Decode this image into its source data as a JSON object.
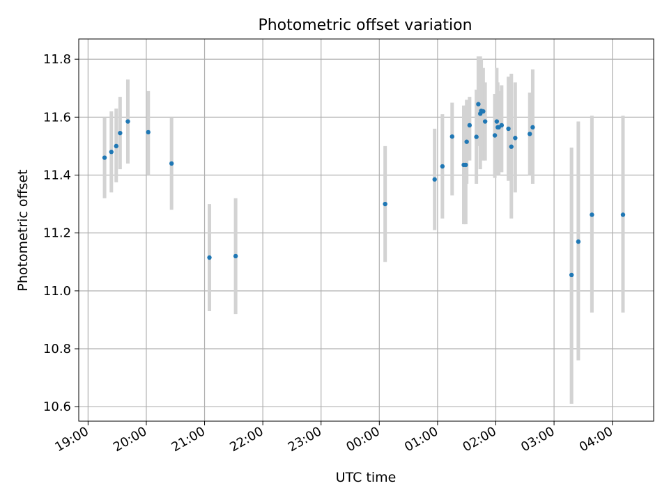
{
  "chart_data": {
    "type": "scatter",
    "title": "Photometric offset variation",
    "xlabel": "UTC time",
    "ylabel": "Photometric offset",
    "grid": true,
    "xlim_hours": [
      18.84,
      28.71
    ],
    "ylim": [
      10.55,
      11.87
    ],
    "x_ticks": [
      {
        "h": 19,
        "label": "19:00"
      },
      {
        "h": 20,
        "label": "20:00"
      },
      {
        "h": 21,
        "label": "21:00"
      },
      {
        "h": 22,
        "label": "22:00"
      },
      {
        "h": 23,
        "label": "23:00"
      },
      {
        "h": 24,
        "label": "00:00"
      },
      {
        "h": 25,
        "label": "01:00"
      },
      {
        "h": 26,
        "label": "02:00"
      },
      {
        "h": 27,
        "label": "03:00"
      },
      {
        "h": 28,
        "label": "04:00"
      }
    ],
    "y_ticks": [
      {
        "v": 10.6,
        "label": "10.6"
      },
      {
        "v": 10.8,
        "label": "10.8"
      },
      {
        "v": 11.0,
        "label": "11.0"
      },
      {
        "v": 11.2,
        "label": "11.2"
      },
      {
        "v": 11.4,
        "label": "11.4"
      },
      {
        "v": 11.6,
        "label": "11.6"
      },
      {
        "v": 11.8,
        "label": "11.8"
      }
    ],
    "colors": {
      "points": "#1f77b4",
      "errorbars": "#d3d3d3",
      "grid": "#b0b0b0"
    },
    "points": [
      {
        "x": "19:17",
        "y": 11.46,
        "lo": 11.32,
        "hi": 11.6
      },
      {
        "x": "19:24",
        "y": 11.48,
        "lo": 11.34,
        "hi": 11.62
      },
      {
        "x": "19:29",
        "y": 11.5,
        "lo": 11.375,
        "hi": 11.63
      },
      {
        "x": "19:33",
        "y": 11.545,
        "lo": 11.42,
        "hi": 11.67
      },
      {
        "x": "19:41",
        "y": 11.585,
        "lo": 11.44,
        "hi": 11.73
      },
      {
        "x": "20:02",
        "y": 11.548,
        "lo": 11.4,
        "hi": 11.69
      },
      {
        "x": "20:26",
        "y": 11.44,
        "lo": 11.28,
        "hi": 11.6
      },
      {
        "x": "21:05",
        "y": 11.115,
        "lo": 10.93,
        "hi": 11.3
      },
      {
        "x": "21:32",
        "y": 11.12,
        "lo": 10.92,
        "hi": 11.32
      },
      {
        "x": "00:06",
        "y": 11.3,
        "lo": 11.1,
        "hi": 11.5
      },
      {
        "x": "00:57",
        "y": 11.385,
        "lo": 11.21,
        "hi": 11.56
      },
      {
        "x": "01:05",
        "y": 11.43,
        "lo": 11.25,
        "hi": 11.61
      },
      {
        "x": "01:15",
        "y": 11.533,
        "lo": 11.33,
        "hi": 11.65
      },
      {
        "x": "01:27",
        "y": 11.435,
        "lo": 11.23,
        "hi": 11.64
      },
      {
        "x": "01:29",
        "y": 11.435,
        "lo": 11.23,
        "hi": 11.64
      },
      {
        "x": "01:30",
        "y": 11.515,
        "lo": 11.37,
        "hi": 11.66
      },
      {
        "x": "01:33",
        "y": 11.572,
        "lo": 11.45,
        "hi": 11.67
      },
      {
        "x": "01:40",
        "y": 11.532,
        "lo": 11.37,
        "hi": 11.695
      },
      {
        "x": "01:42",
        "y": 11.645,
        "lo": 11.5,
        "hi": 11.81
      },
      {
        "x": "01:44",
        "y": 11.612,
        "lo": 11.42,
        "hi": 11.81
      },
      {
        "x": "01:45",
        "y": 11.622,
        "lo": 11.47,
        "hi": 11.8
      },
      {
        "x": "01:47",
        "y": 11.62,
        "lo": 11.45,
        "hi": 11.77
      },
      {
        "x": "01:49",
        "y": 11.585,
        "lo": 11.45,
        "hi": 11.72
      },
      {
        "x": "01:59",
        "y": 11.537,
        "lo": 11.39,
        "hi": 11.68
      },
      {
        "x": "02:01",
        "y": 11.585,
        "lo": 11.4,
        "hi": 11.77
      },
      {
        "x": "02:02",
        "y": 11.565,
        "lo": 11.44,
        "hi": 11.72
      },
      {
        "x": "02:03",
        "y": 11.565,
        "lo": 11.4,
        "hi": 11.69
      },
      {
        "x": "02:06",
        "y": 11.572,
        "lo": 11.41,
        "hi": 11.71
      },
      {
        "x": "02:13",
        "y": 11.56,
        "lo": 11.38,
        "hi": 11.74
      },
      {
        "x": "02:16",
        "y": 11.498,
        "lo": 11.25,
        "hi": 11.75
      },
      {
        "x": "02:20",
        "y": 11.528,
        "lo": 11.34,
        "hi": 11.72
      },
      {
        "x": "02:35",
        "y": 11.542,
        "lo": 11.4,
        "hi": 11.685
      },
      {
        "x": "02:38",
        "y": 11.565,
        "lo": 11.37,
        "hi": 11.765
      },
      {
        "x": "03:18",
        "y": 11.055,
        "lo": 10.61,
        "hi": 11.495
      },
      {
        "x": "03:25",
        "y": 11.17,
        "lo": 10.76,
        "hi": 11.585
      },
      {
        "x": "03:39",
        "y": 11.263,
        "lo": 10.925,
        "hi": 11.605
      },
      {
        "x": "04:11",
        "y": 11.263,
        "lo": 10.925,
        "hi": 11.605
      }
    ]
  }
}
